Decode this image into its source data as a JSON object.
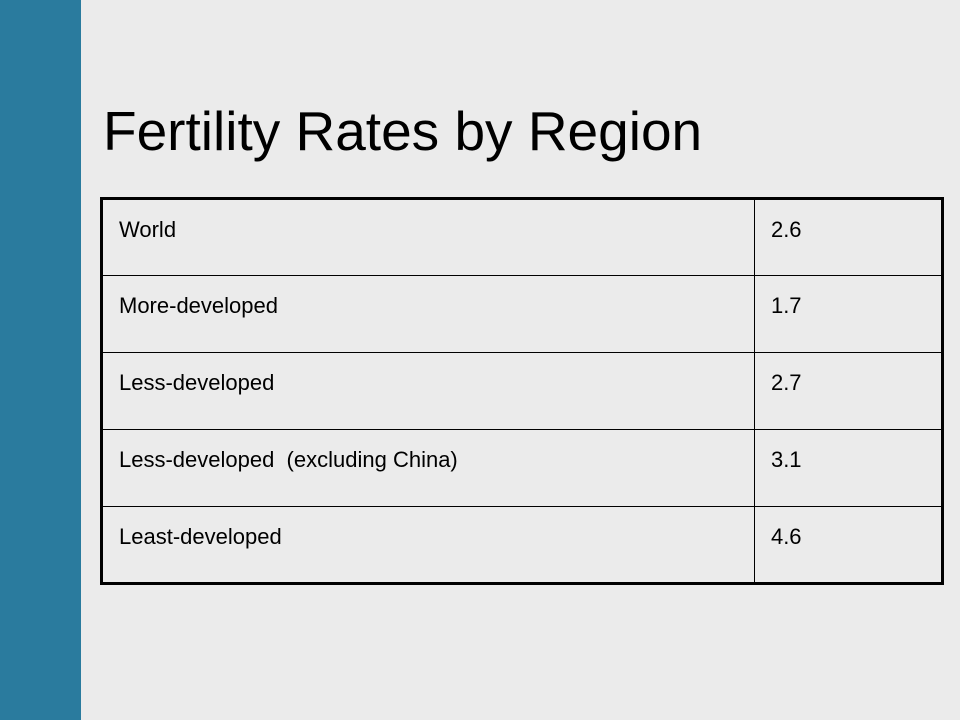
{
  "slide": {
    "title": "Fertility Rates by Region",
    "colors": {
      "background": "#ebebeb",
      "accent_bar": "#2a7b9e",
      "text": "#000000",
      "table_border": "#000000"
    }
  },
  "table": {
    "rows": [
      {
        "region": "World",
        "rate": "2.6"
      },
      {
        "region": "More-developed",
        "rate": "1.7"
      },
      {
        "region": "Less-developed",
        "rate": "2.7"
      },
      {
        "region": "Less-developed  (excluding China)",
        "rate": "3.1"
      },
      {
        "region": "Least-developed",
        "rate": "4.6"
      }
    ]
  }
}
